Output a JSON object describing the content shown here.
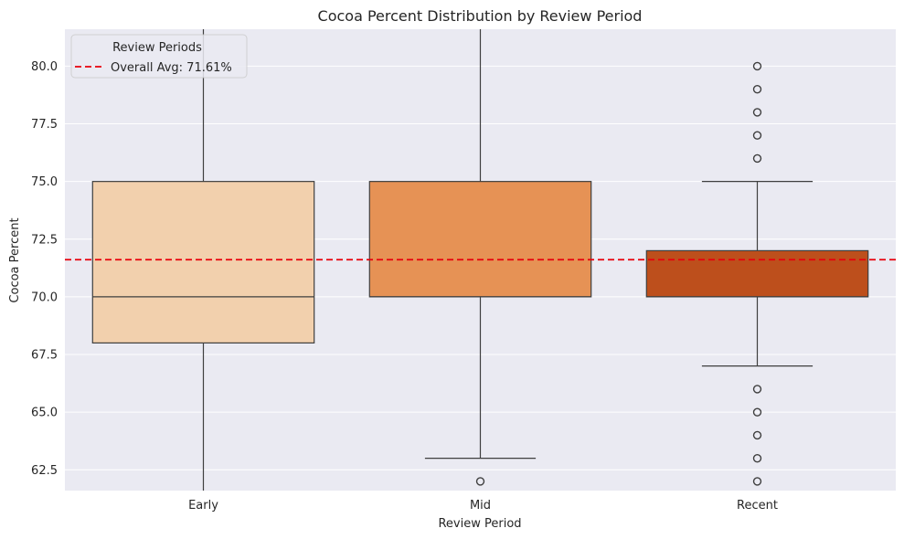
{
  "chart_data": {
    "type": "box",
    "title": "Cocoa Percent Distribution by Review Period",
    "xlabel": "Review Period",
    "ylabel": "Cocoa Percent",
    "ylim": [
      61.6,
      81.6
    ],
    "yticks": [
      62.5,
      65.0,
      67.5,
      70.0,
      72.5,
      75.0,
      77.5,
      80.0
    ],
    "ytick_labels": [
      "62.5",
      "65.0",
      "67.5",
      "70.0",
      "72.5",
      "75.0",
      "77.5",
      "80.0"
    ],
    "grid": true,
    "categories": [
      "Early",
      "Mid",
      "Recent"
    ],
    "boxes": [
      {
        "category": "Early",
        "q1": 68.0,
        "median": 70.0,
        "q3": 75.0,
        "whisker_low": 61.6,
        "whisker_high": 81.6,
        "outliers": [],
        "color": "#f2d0ad"
      },
      {
        "category": "Mid",
        "q1": 70.0,
        "median": 70.0,
        "q3": 75.0,
        "whisker_low": 63.0,
        "whisker_high": 81.6,
        "outliers": [
          62.0
        ],
        "color": "#e69255"
      },
      {
        "category": "Recent",
        "q1": 70.0,
        "median": 70.0,
        "q3": 72.0,
        "whisker_low": 67.0,
        "whisker_high": 75.0,
        "outliers": [
          80.0,
          79.0,
          78.0,
          77.0,
          76.0,
          66.0,
          65.0,
          64.0,
          63.0,
          62.0
        ],
        "color": "#bd4f1c"
      }
    ],
    "reference_line": {
      "value": 71.61,
      "label": "Overall Avg: 71.61%",
      "color": "#e8000b",
      "style": "dashed"
    },
    "legend": {
      "title": "Review Periods",
      "placement": "top-left"
    }
  }
}
